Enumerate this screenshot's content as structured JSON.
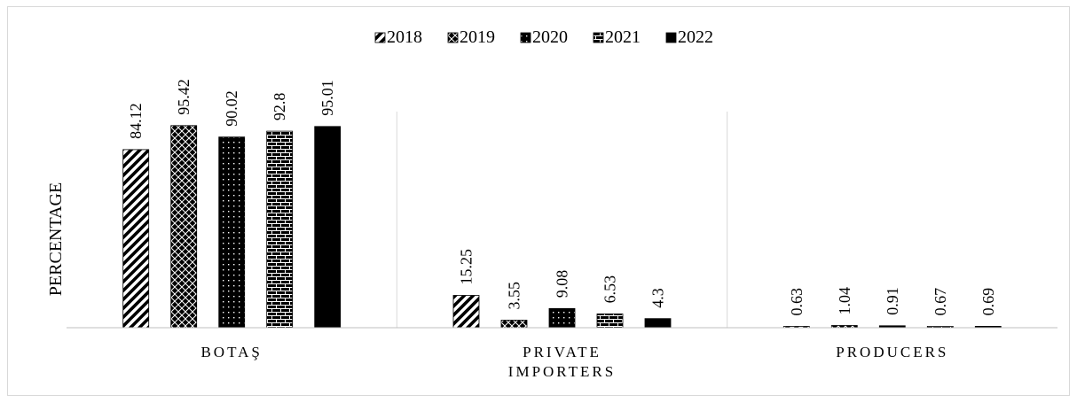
{
  "chart_data": {
    "type": "bar",
    "title": "",
    "ylabel": "PERCENTAGE",
    "xlabel": "",
    "categories": [
      [
        "BOTAŞ"
      ],
      [
        "PRIVATE",
        "IMPORTERS"
      ],
      [
        "PRODUCERS"
      ]
    ],
    "ylim": [
      0,
      100
    ],
    "grid": false,
    "legend_position": "top",
    "series": [
      {
        "name": "2018",
        "pattern": "diagonal-stripes",
        "values": [
          84.12,
          15.25,
          0.63
        ]
      },
      {
        "name": "2019",
        "pattern": "cross-hatch",
        "values": [
          95.42,
          3.55,
          1.04
        ]
      },
      {
        "name": "2020",
        "pattern": "dots",
        "values": [
          90.02,
          9.08,
          0.91
        ]
      },
      {
        "name": "2021",
        "pattern": "bricks",
        "values": [
          92.8,
          6.53,
          0.67
        ]
      },
      {
        "name": "2022",
        "pattern": "solid",
        "values": [
          95.01,
          4.3,
          0.69
        ]
      }
    ],
    "colors": {
      "bar": "#000000",
      "separator": "#d9d9d9",
      "axis": "#bfbfbf",
      "text": "#000000"
    }
  }
}
